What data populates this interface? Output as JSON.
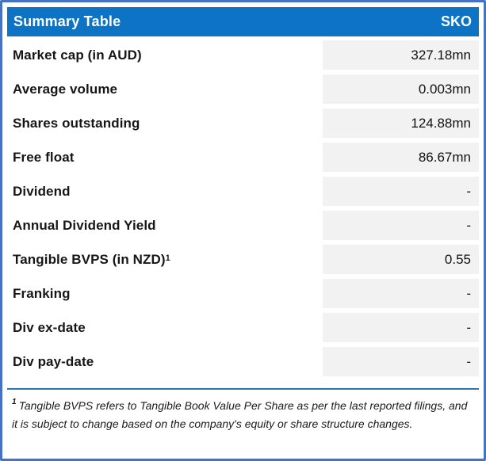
{
  "header": {
    "title": "Summary Table",
    "ticker": "SKO"
  },
  "rows": [
    {
      "label": "Market cap (in AUD)",
      "sup": "",
      "value": "327.18mn"
    },
    {
      "label": "Average volume",
      "sup": "",
      "value": "0.003mn"
    },
    {
      "label": "Shares outstanding",
      "sup": "",
      "value": "124.88mn"
    },
    {
      "label": "Free float",
      "sup": "",
      "value": "86.67mn"
    },
    {
      "label": "Dividend",
      "sup": "",
      "value": "-"
    },
    {
      "label": "Annual Dividend Yield",
      "sup": "",
      "value": "-"
    },
    {
      "label": "Tangible BVPS (in NZD)",
      "sup": "1",
      "value": "0.55"
    },
    {
      "label": "Franking",
      "sup": "",
      "value": "-"
    },
    {
      "label": "Div ex-date",
      "sup": "",
      "value": "-"
    },
    {
      "label": "Div pay-date",
      "sup": "",
      "value": "-"
    }
  ],
  "footnote": {
    "sup": "1",
    "text": "Tangible BVPS refers to Tangible Book Value Per Share as per the last reported filings, and it is subject to change based on the company's equity or share structure changes."
  },
  "colors": {
    "border": "#4472C4",
    "header_bg": "#0D73C5",
    "header_text": "#FFFFFF",
    "value_cell_bg": "#F2F2F2",
    "rule": "#2E75B6"
  }
}
